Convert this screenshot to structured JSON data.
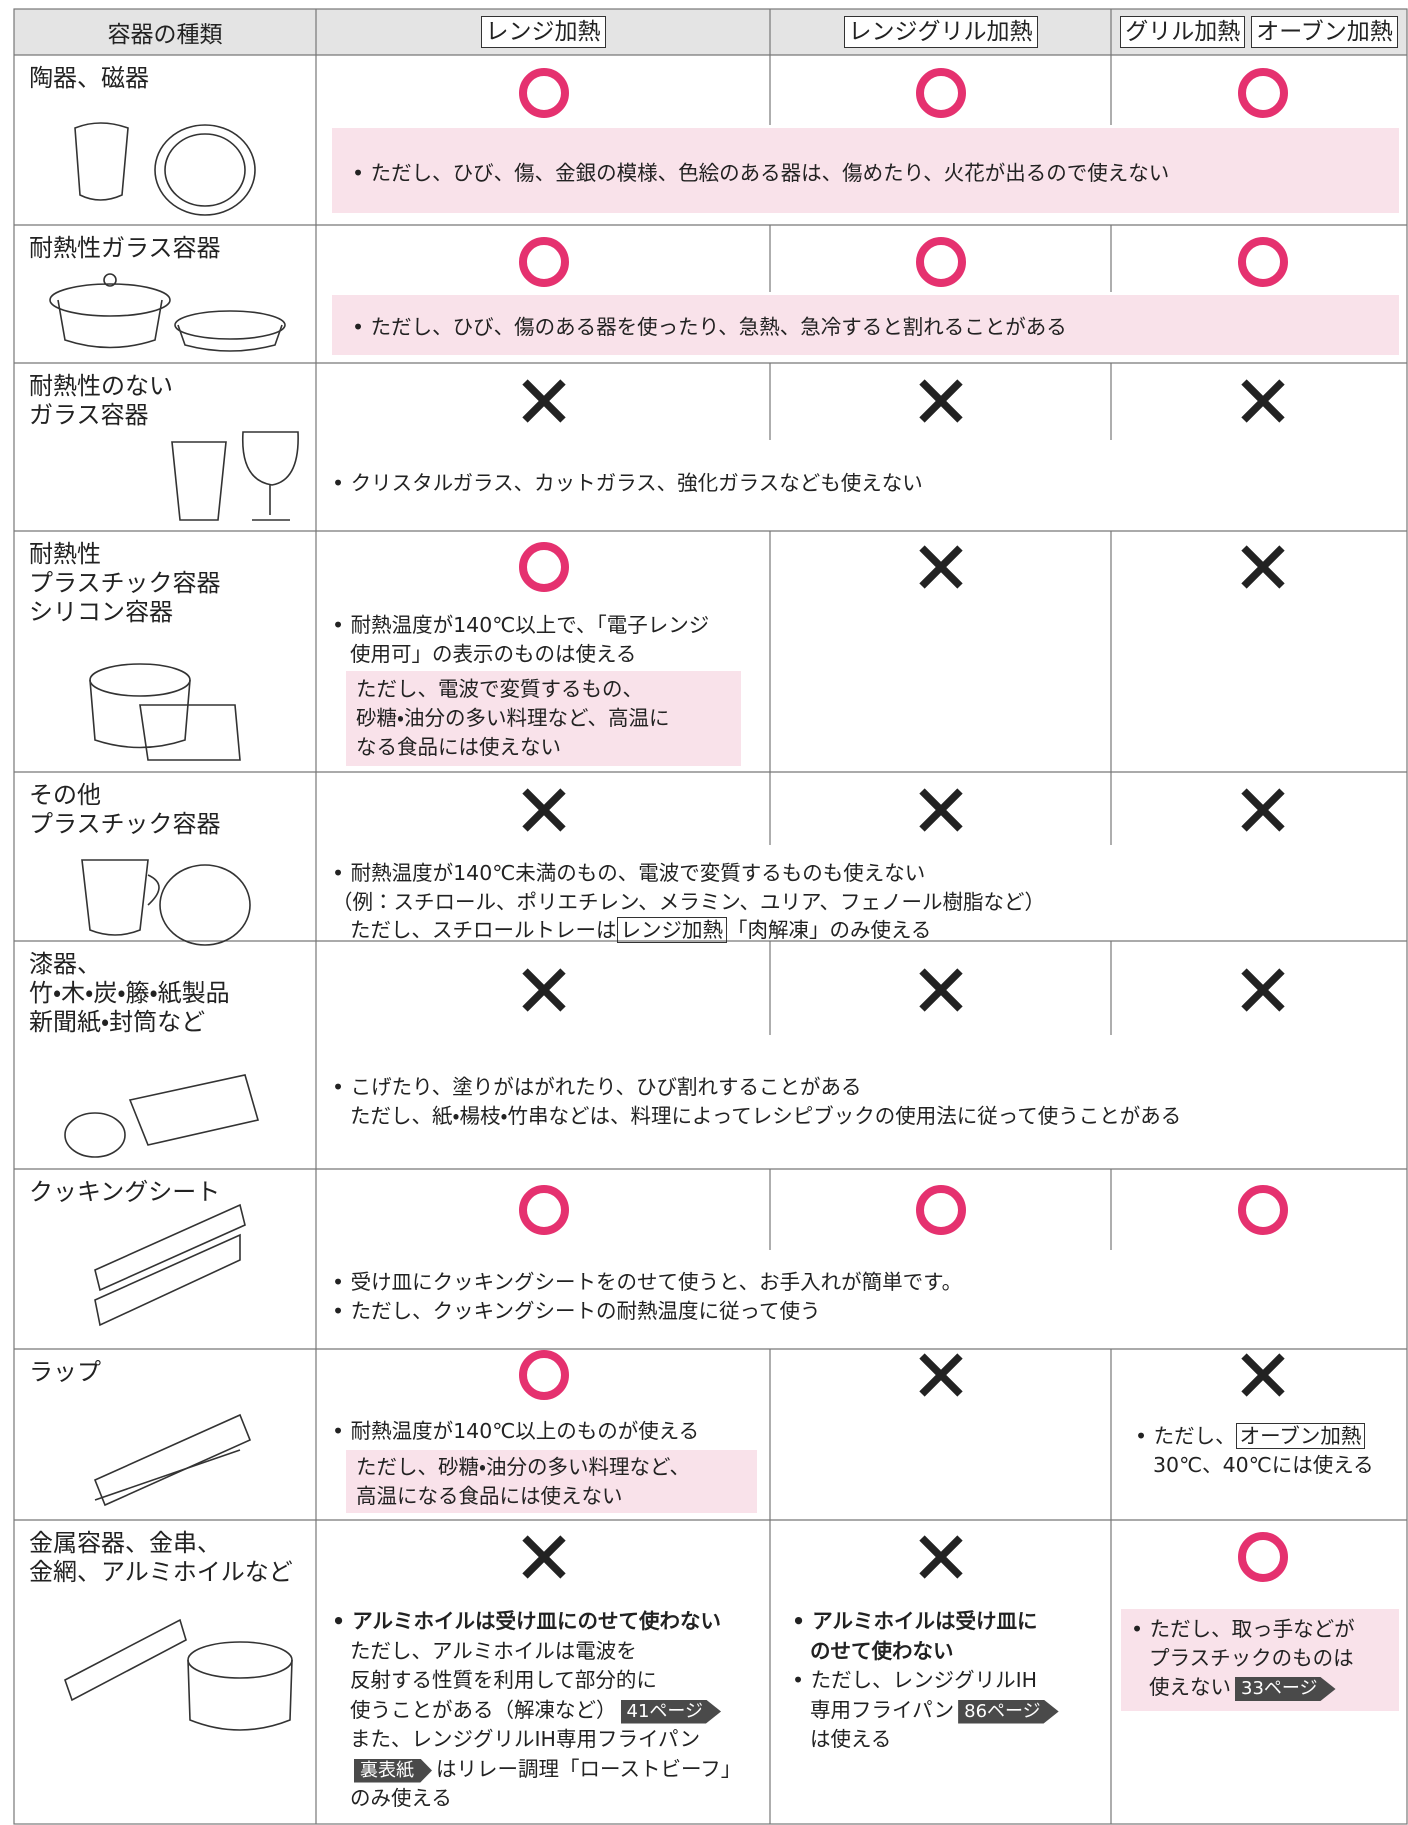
{
  "header": {
    "columns": [
      "容器の種類",
      "レンジ加熱",
      "レンジグリル加熱",
      "グリル加熱",
      "オーブン加熱"
    ]
  },
  "rows": [
    {
      "name": [
        "陶器、磁器"
      ],
      "note": [
        "• ただし、ひび、傷、金銀の模様、色絵のある器は、傷めたり、火花が出るので使えない"
      ]
    },
    {
      "name": [
        "耐熱性ガラス容器"
      ],
      "note": [
        "• ただし、ひび、傷のある器を使ったり、急熱、急冷すると割れることがある"
      ]
    },
    {
      "name": [
        "耐熱性のない",
        "ガラス容器"
      ],
      "note": [
        "• クリスタルガラス、カットガラス、強化ガラスなども使えない"
      ]
    },
    {
      "name": [
        "耐熱性",
        "プラスチック容器",
        "シリコン容器"
      ],
      "range_note": [
        "• 耐熱温度が140℃以上で、「電子レンジ",
        "使用可」の表示のものは使える"
      ],
      "range_caution": [
        "ただし、電波で変質するもの、",
        "砂糖・油分の多い料理など、高温に",
        "なる食品には使えない"
      ]
    },
    {
      "name": [
        "その他",
        "プラスチック容器"
      ],
      "note": [
        "• 耐熱温度が140℃未満のもの、電波で変質するものも使えない",
        "（例：スチロール、ポリエチレン、メラミン、ユリア、フェノール樹脂など）",
        [
          "ただし、スチロールトレーは",
          "レンジ加熱",
          "「肉解凍」のみ使える"
        ]
      ]
    },
    {
      "name": [
        "漆器、",
        "竹・木・炭・籐・紙製品",
        "新聞紙・封筒など"
      ],
      "note": [
        "• こげたり、塗りがはがれたり、ひび割れすることがある",
        "ただし、紙・楊枝・竹串などは、料理によってレシピブックの使用法に従って使うことがある"
      ]
    },
    {
      "name": [
        "クッキングシート"
      ],
      "note": [
        "• 受け皿にクッキングシートをのせて使うと、お手入れが簡単です。",
        "• ただし、クッキングシートの耐熱温度に従って使う"
      ]
    },
    {
      "name": [
        "ラップ"
      ],
      "range_note": [
        "• 耐熱温度が140℃以上のものが使える"
      ],
      "range_caution": [
        "ただし、砂糖・油分の多い料理など、",
        "高温になる食品には使えない"
      ],
      "grill_oven_note": [
        [
          "• ただし、",
          "オーブン加熱"
        ],
        "30℃、40℃には使える"
      ]
    },
    {
      "name": [
        "金属容器、金串、",
        "金網、アルミホイルなど"
      ],
      "range_note": [
        "• アルミホイルは受け皿にのせて使わない",
        "ただし、アルミホイルは電波を",
        "反射する性質を利用して部分的に",
        [
          "使うことがある（解凍など）",
          "41ページ"
        ],
        "また、レンジグリルIH専用フライパン",
        [
          "裏表紙",
          "はリレー調理「ローストビーフ」"
        ],
        "のみ使える"
      ],
      "range_grill_note": [
        "• アルミホイルは受け皿に",
        "のせて使わない",
        "• ただし、レンジグリルIH",
        [
          "専用フライパン",
          "86ページ"
        ],
        "は使える"
      ],
      "grill_oven_note": [
        "• ただし、取っ手などが",
        "プラスチックのものは",
        [
          "使えない",
          "33ページ"
        ]
      ]
    }
  ]
}
